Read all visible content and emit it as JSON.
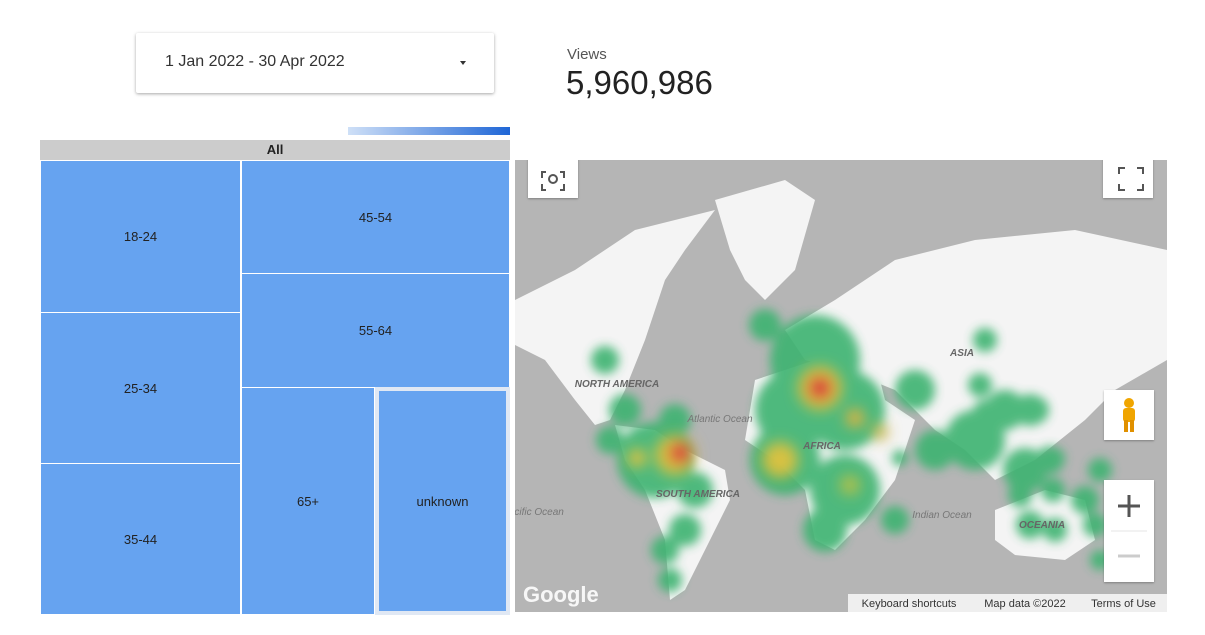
{
  "date_range": "1 Jan 2022 - 30 Apr 2022",
  "scorecard": {
    "label": "Views",
    "value": "5,960,986"
  },
  "treemap": {
    "root": "All",
    "cells": [
      "18-24",
      "25-34",
      "35-44",
      "45-54",
      "55-64",
      "65+",
      "unknown"
    ]
  },
  "map": {
    "labels": [
      "NORTH AMERICA",
      "Atlantic Ocean",
      "AFRICA",
      "ASIA",
      "SOUTH AMERICA",
      "Pacific Ocean",
      "Indian Ocean",
      "OCEANIA"
    ],
    "logo": "Google",
    "footer": [
      "Keyboard shortcuts",
      "Map data ©2022",
      "Terms of Use"
    ]
  }
}
